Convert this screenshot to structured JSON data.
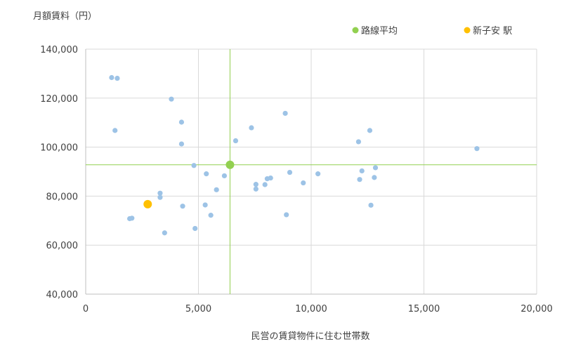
{
  "chart_data": {
    "type": "scatter",
    "title": "",
    "ylabel": "月額賃料（円）",
    "xlabel": "民営の賃貸物件に住む世帯数",
    "xlim": [
      0,
      20000
    ],
    "ylim": [
      40000,
      140000
    ],
    "x_ticks": [
      "0",
      "5,000",
      "10,000",
      "15,000",
      "20,000"
    ],
    "y_ticks": [
      "40,000",
      "60,000",
      "80,000",
      "100,000",
      "120,000",
      "140,000"
    ],
    "x_tick_values": [
      0,
      5000,
      10000,
      15000,
      20000
    ],
    "y_tick_values": [
      40000,
      60000,
      80000,
      100000,
      120000,
      140000
    ],
    "grid": true,
    "legend_position": "top-right",
    "colors": {
      "points": "#9dc3e6",
      "average": "#92d050",
      "highlight": "#ffc000",
      "grid": "#d9d9d9",
      "axis": "#bfbfbf",
      "crosshair": "#92d050"
    },
    "series": [
      {
        "points": [
          [
            1150,
            128400
          ],
          [
            1400,
            128100
          ],
          [
            1300,
            106800
          ],
          [
            3800,
            119600
          ],
          [
            4250,
            110200
          ],
          [
            4250,
            101300
          ],
          [
            4800,
            92500
          ],
          [
            5350,
            89100
          ],
          [
            6150,
            88300
          ],
          [
            5800,
            82600
          ],
          [
            3300,
            81200
          ],
          [
            3300,
            79500
          ],
          [
            4300,
            75900
          ],
          [
            5300,
            76400
          ],
          [
            5550,
            72200
          ],
          [
            1950,
            70800
          ],
          [
            2050,
            71000
          ],
          [
            3500,
            65000
          ],
          [
            4850,
            66800
          ],
          [
            6650,
            102600
          ],
          [
            7350,
            107900
          ],
          [
            7550,
            84800
          ],
          [
            7550,
            82900
          ],
          [
            7950,
            84700
          ],
          [
            8050,
            87100
          ],
          [
            8200,
            87400
          ],
          [
            8850,
            113800
          ],
          [
            8900,
            72400
          ],
          [
            9050,
            89700
          ],
          [
            9650,
            85400
          ],
          [
            10300,
            89100
          ],
          [
            12100,
            102200
          ],
          [
            12600,
            106800
          ],
          [
            12250,
            90300
          ],
          [
            12150,
            86800
          ],
          [
            12850,
            91600
          ],
          [
            12800,
            87600
          ],
          [
            12650,
            76300
          ],
          [
            17350,
            99400
          ]
        ]
      },
      {
        "name": "路線平均",
        "points": [
          [
            6400,
            92800
          ]
        ]
      },
      {
        "name": "新子安 駅",
        "points": [
          [
            2750,
            76700
          ]
        ]
      }
    ],
    "average_lines": {
      "x": 6400,
      "y": 92800
    }
  }
}
